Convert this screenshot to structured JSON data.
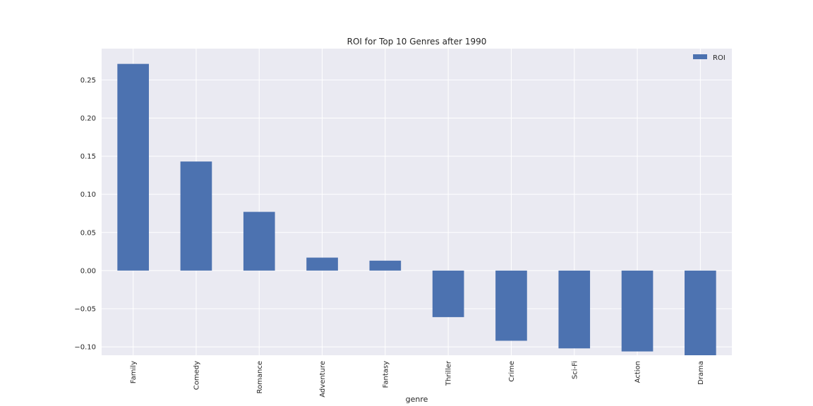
{
  "chart_data": {
    "type": "bar",
    "title": "ROI for Top 10 Genres after 1990",
    "xlabel": "genre",
    "ylabel": "",
    "categories": [
      "Family",
      "Comedy",
      "Romance",
      "Adventure",
      "Fantasy",
      "Thriller",
      "Crime",
      "Sci-Fi",
      "Action",
      "Drama"
    ],
    "series": [
      {
        "name": "ROI",
        "values": [
          0.271,
          0.143,
          0.077,
          0.017,
          0.013,
          -0.061,
          -0.092,
          -0.102,
          -0.106,
          -0.111
        ],
        "color": "#4c72b0"
      }
    ],
    "ylim": [
      -0.111,
      0.291
    ],
    "yticks": [
      -0.1,
      -0.05,
      0.0,
      0.05,
      0.1,
      0.15,
      0.2,
      0.25
    ],
    "ytick_labels": [
      "−0.10",
      "−0.05",
      "0.00",
      "0.05",
      "0.10",
      "0.15",
      "0.20",
      "0.25"
    ],
    "grid": true,
    "legend_position": "top-right",
    "background_color": "#eaeaf2",
    "grid_color": "#ffffff"
  }
}
